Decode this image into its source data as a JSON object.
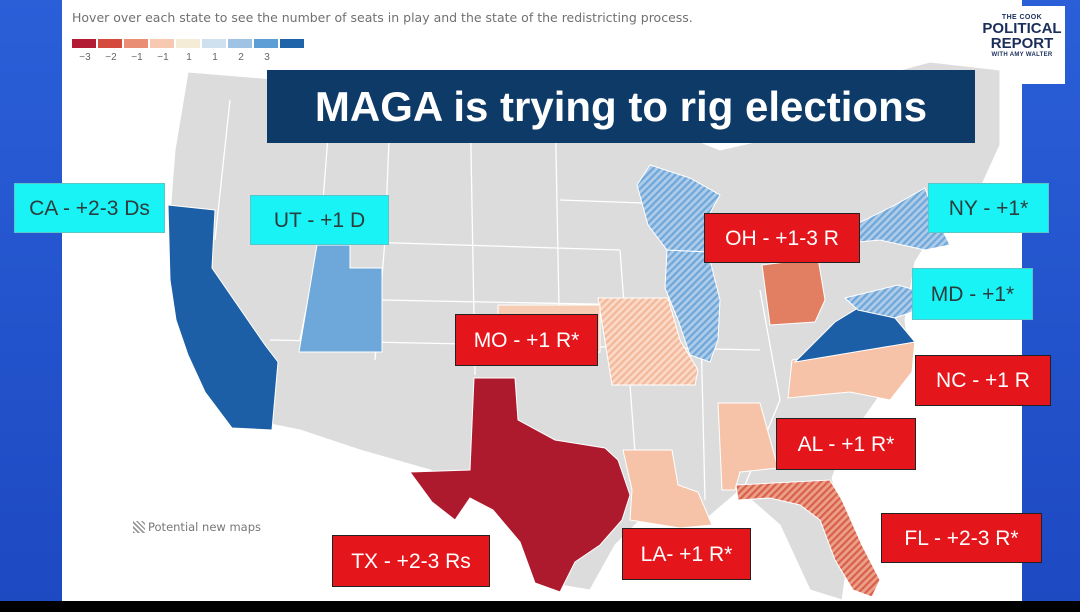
{
  "header": {
    "hint": "Hover over each state to see the number of seats in play and the state of the redistricting process."
  },
  "legend": {
    "colors": [
      "#b31b34",
      "#d44a3e",
      "#e98e74",
      "#f6c9b0",
      "#f5ecd8",
      "#cfe0ef",
      "#9fc3e4",
      "#5e9ed6",
      "#1f63a8"
    ],
    "ticks": [
      "−3",
      "−2",
      "−1",
      "−1",
      "1",
      "1",
      "2",
      "3"
    ]
  },
  "logo": {
    "line1": "THE COOK",
    "line2": "POLITICAL",
    "line3": "REPORT",
    "line4": "WITH AMY WALTER"
  },
  "title": "MAGA is trying to rig elections",
  "potential_maps_label": "Potential new maps",
  "colors": {
    "base_state": "#dddddd",
    "dem_dark": "#1c5fa6",
    "dem_light": "#6ea7da",
    "rep_dark": "#ad1a2e",
    "rep_mid": "#e27f63",
    "rep_light": "#f6c3a8",
    "label_dem_bg": "#1af3f6",
    "label_rep_bg": "#e5161b"
  },
  "labels": {
    "ca": "CA - +2-3 Ds",
    "ut": "UT - +1 D",
    "ny": "NY - +1*",
    "md": "MD - +1*",
    "oh": "OH - +1-3 R",
    "mo": "MO - +1 R*",
    "nc": "NC - +1 R",
    "al": "AL - +1 R*",
    "fl": "FL - +2-3 R*",
    "la": "LA- +1 R*",
    "tx": "TX - +2-3 Rs"
  }
}
